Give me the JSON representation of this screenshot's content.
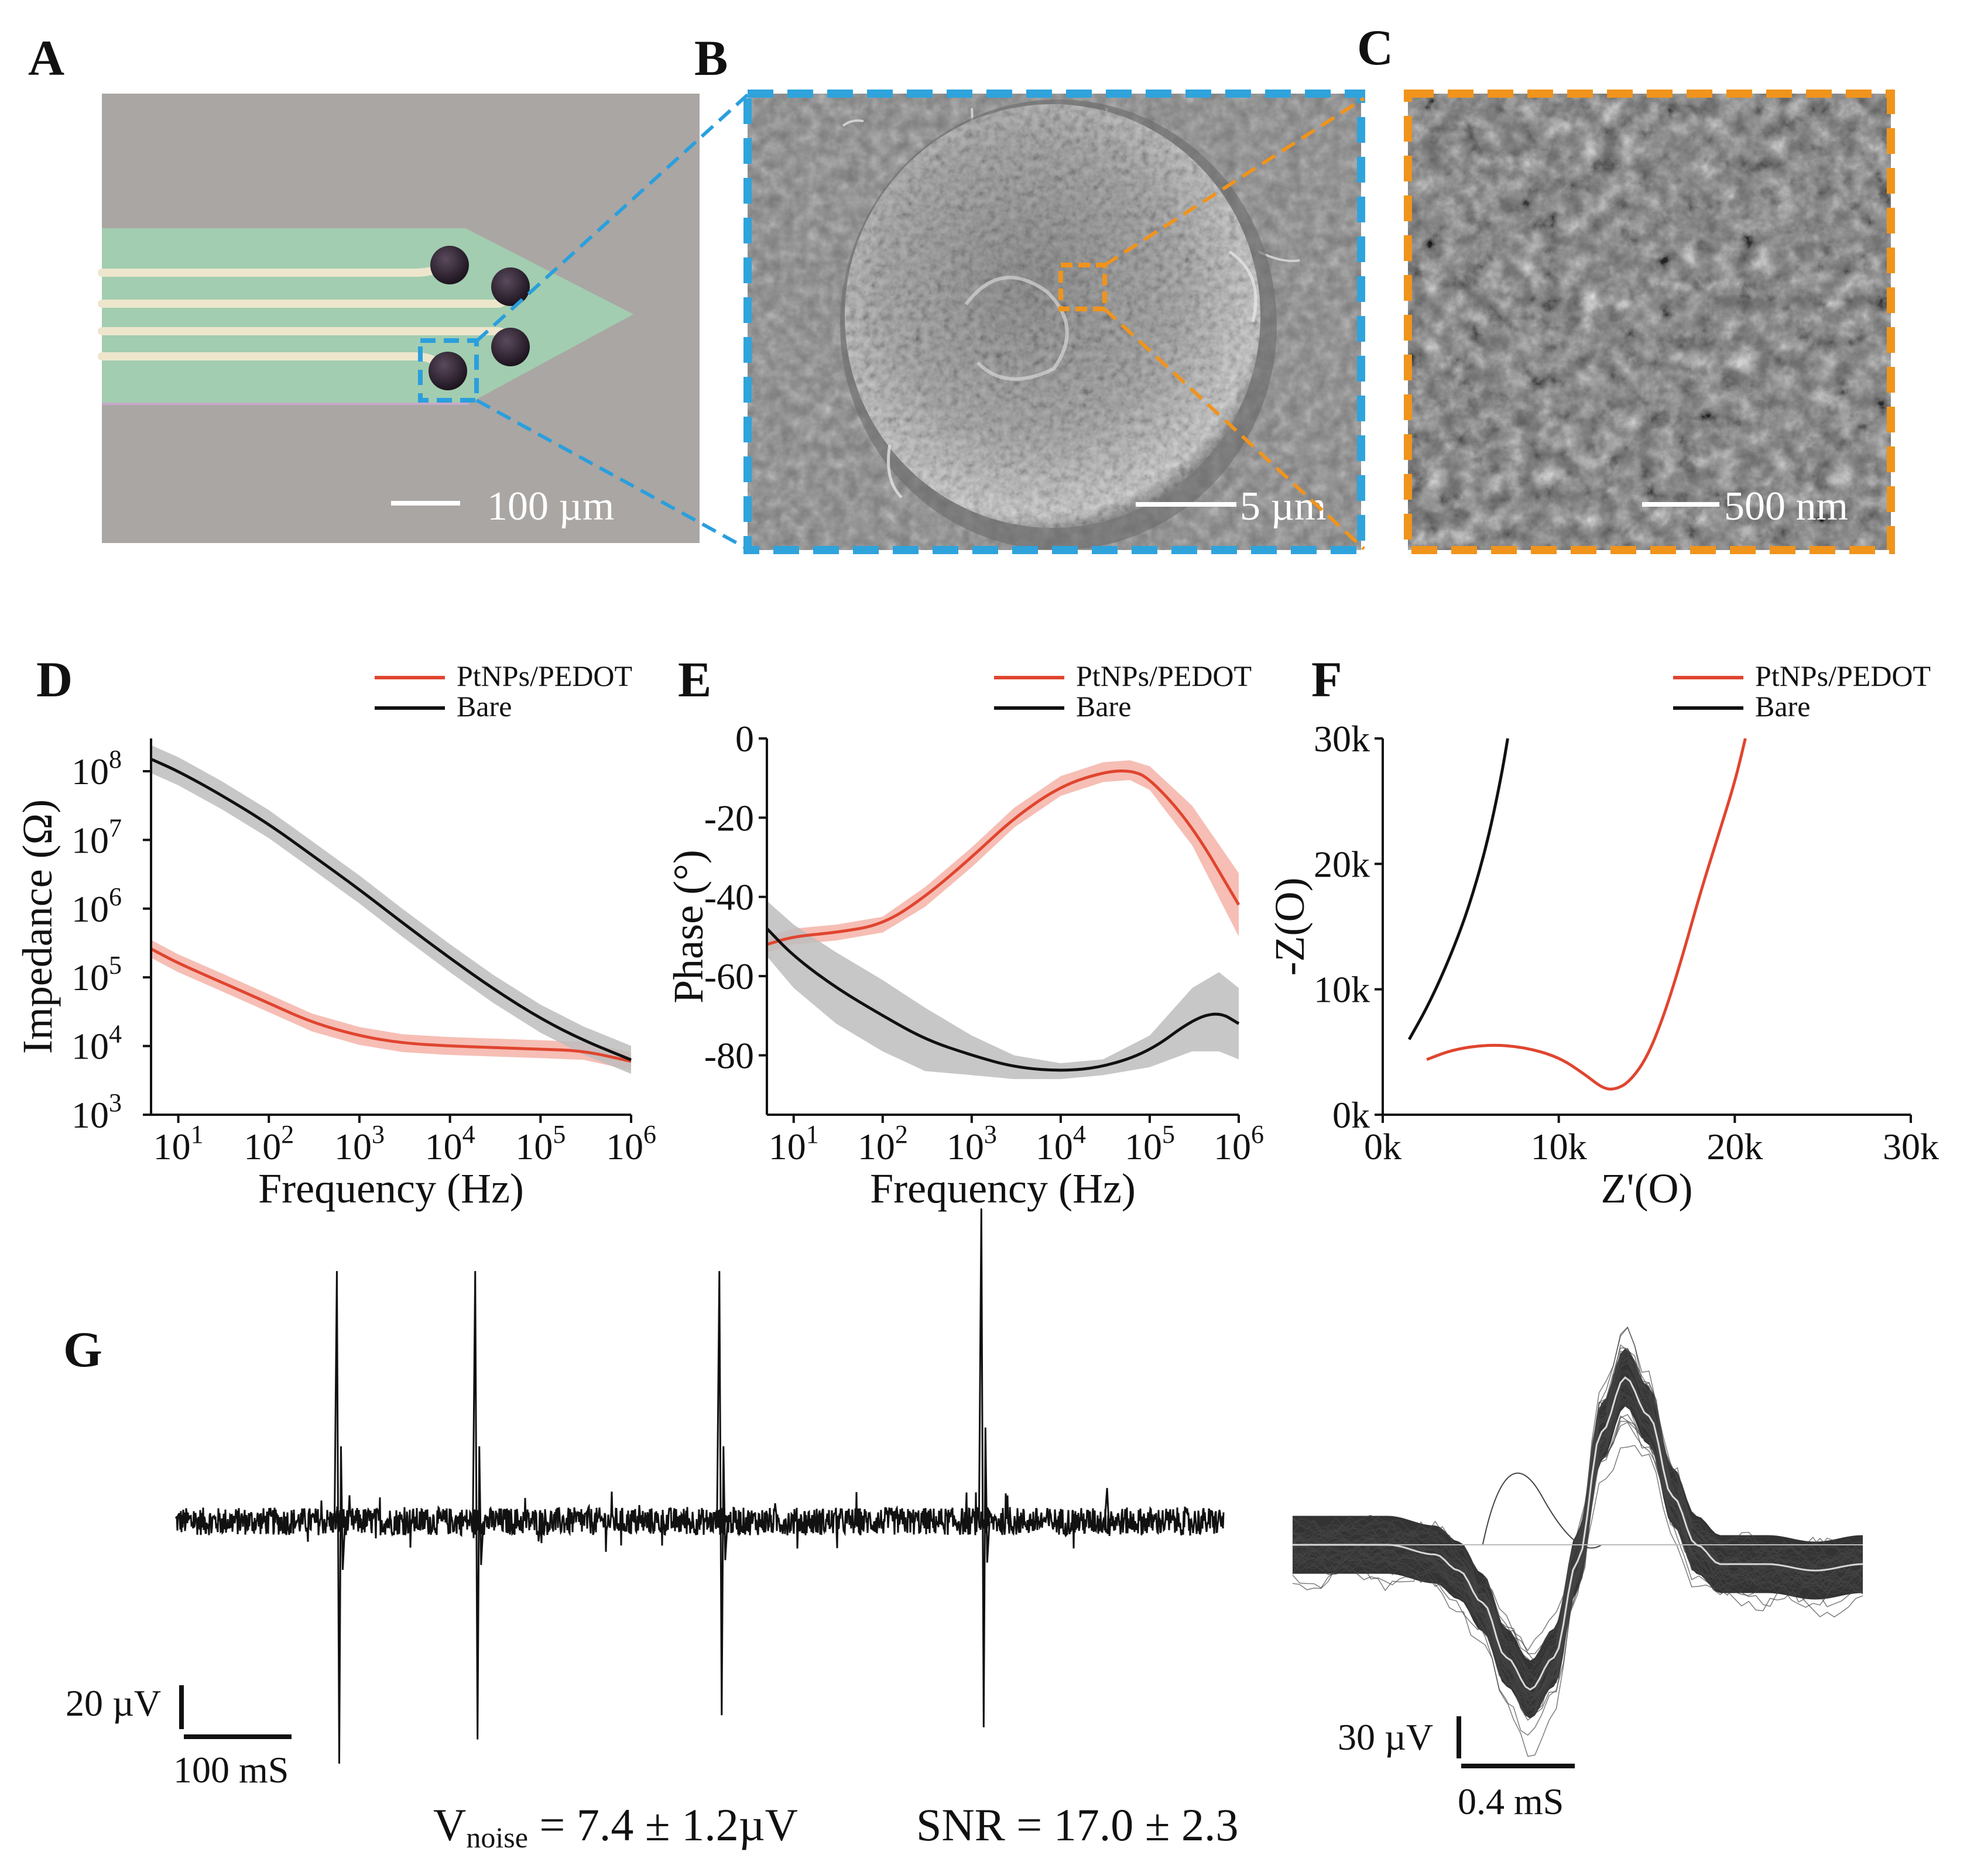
{
  "panels": {
    "A": {
      "label": "A",
      "scale_bar": "100 µm",
      "colors": {
        "background": "#aaa6a3",
        "probe": "#a2cdb0",
        "trace": "#ede6cc",
        "electrode": "#2a1e2c",
        "highlight": "#2a9fdd"
      }
    },
    "B": {
      "label": "B",
      "scale_bar": "5 µm",
      "colors": {
        "frame": "#2fa3dc",
        "zoom_box": "#f0941c"
      }
    },
    "C": {
      "label": "C",
      "scale_bar": "500 nm",
      "colors": {
        "frame": "#f0941c"
      }
    },
    "D": {
      "label": "D"
    },
    "E": {
      "label": "E"
    },
    "F": {
      "label": "F"
    },
    "G": {
      "label": "G",
      "scale_left": {
        "v": "20 µV",
        "t": "100 mS"
      },
      "scale_right": {
        "v": "30 µV",
        "t": "0.4 mS"
      },
      "noise_prefix": "V",
      "noise_sub": "noise",
      "noise_value": " = 7.4 ± 1.2µV",
      "snr": "SNR = 17.0 ± 2.3"
    }
  },
  "chart_data": [
    {
      "id": "D",
      "type": "line",
      "title": "",
      "xlabel": "Frequency (Hz)",
      "ylabel": "Impedance (Ω)",
      "xscale": "log",
      "yscale": "log",
      "xlim": [
        5,
        1000000
      ],
      "ylim": [
        1000,
        300000000
      ],
      "x_ticks": [
        {
          "v": 10,
          "b": "10",
          "e": "1"
        },
        {
          "v": 100,
          "b": "10",
          "e": "2"
        },
        {
          "v": 1000,
          "b": "10",
          "e": "3"
        },
        {
          "v": 10000,
          "b": "10",
          "e": "4"
        },
        {
          "v": 100000,
          "b": "10",
          "e": "5"
        },
        {
          "v": 1000000,
          "b": "10",
          "e": "6"
        }
      ],
      "y_ticks": [
        {
          "v": 1000,
          "b": "10",
          "e": "3"
        },
        {
          "v": 10000,
          "b": "10",
          "e": "4"
        },
        {
          "v": 100000,
          "b": "10",
          "e": "5"
        },
        {
          "v": 1000000,
          "b": "10",
          "e": "6"
        },
        {
          "v": 10000000,
          "b": "10",
          "e": "7"
        },
        {
          "v": 100000000,
          "b": "10",
          "e": "8"
        }
      ],
      "legend": [
        "PtNPs/PEDOT",
        "Bare"
      ],
      "series": [
        {
          "name": "PtNPs/PEDOT",
          "color": "#e0452f",
          "band": "#f4b3a8",
          "x": [
            5,
            10,
            30,
            100,
            300,
            1000,
            3000,
            10000,
            30000,
            100000,
            300000,
            1000000
          ],
          "y": [
            260000,
            160000,
            85000,
            42000,
            22000,
            14000,
            11000,
            10000,
            9500,
            9000,
            8500,
            6000
          ],
          "band_factor": 1.35
        },
        {
          "name": "Bare",
          "color": "#111111",
          "band": "#bdbdbd",
          "x": [
            5,
            10,
            30,
            100,
            300,
            1000,
            3000,
            10000,
            30000,
            100000,
            300000,
            1000000
          ],
          "y": [
            150000000,
            100000000,
            45000000,
            17000000,
            6000000,
            1900000,
            620000,
            190000,
            68000,
            25000,
            12000,
            6300
          ],
          "band_factor": 1.6
        }
      ]
    },
    {
      "id": "E",
      "type": "line",
      "title": "",
      "xlabel": "Frequency (Hz)",
      "ylabel": "Phase (°)",
      "xscale": "log",
      "yscale": "linear",
      "xlim": [
        5,
        1000000
      ],
      "ylim": [
        -95,
        0
      ],
      "x_ticks": [
        {
          "v": 10,
          "b": "10",
          "e": "1"
        },
        {
          "v": 100,
          "b": "10",
          "e": "2"
        },
        {
          "v": 1000,
          "b": "10",
          "e": "3"
        },
        {
          "v": 10000,
          "b": "10",
          "e": "4"
        },
        {
          "v": 100000,
          "b": "10",
          "e": "5"
        },
        {
          "v": 1000000,
          "b": "10",
          "e": "6"
        }
      ],
      "y_ticks": [
        {
          "v": 0,
          "t": "0"
        },
        {
          "v": -20,
          "t": "-20"
        },
        {
          "v": -40,
          "t": "-40"
        },
        {
          "v": -60,
          "t": "-60"
        },
        {
          "v": -80,
          "t": "-80"
        }
      ],
      "legend": [
        "PtNPs/PEDOT",
        "Bare"
      ],
      "series": [
        {
          "name": "PtNPs/PEDOT",
          "color": "#e0452f",
          "band": [
            2,
            2,
            2,
            2,
            2.5,
            2.5,
            2.5,
            2.5,
            2.5,
            2.5,
            3,
            5,
            8
          ],
          "x": [
            5,
            10,
            30,
            100,
            300,
            1000,
            3000,
            10000,
            30000,
            60000,
            100000,
            300000,
            1000000
          ],
          "y": [
            -52,
            -50,
            -49,
            -47,
            -40,
            -30,
            -20,
            -12,
            -8.5,
            -8,
            -10,
            -22,
            -42
          ]
        },
        {
          "name": "Bare",
          "color": "#111111",
          "band": [
            7,
            8,
            9,
            9,
            8,
            5,
            3,
            2,
            2,
            4,
            8,
            10,
            9
          ],
          "x": [
            5,
            10,
            30,
            100,
            300,
            1000,
            3000,
            10000,
            30000,
            100000,
            300000,
            600000,
            1000000
          ],
          "y": [
            -48,
            -55,
            -63,
            -70,
            -76,
            -80,
            -83,
            -84,
            -83,
            -79,
            -71,
            -69,
            -72
          ]
        }
      ]
    },
    {
      "id": "F",
      "type": "line",
      "title": "",
      "xlabel": "Z'(O)",
      "ylabel": "-Z(O)",
      "xlim": [
        0,
        30000
      ],
      "ylim": [
        0,
        30000
      ],
      "x_ticks": [
        {
          "v": 0,
          "t": "0k"
        },
        {
          "v": 10000,
          "t": "10k"
        },
        {
          "v": 20000,
          "t": "20k"
        },
        {
          "v": 30000,
          "t": "30k"
        }
      ],
      "y_ticks": [
        {
          "v": 0,
          "t": "0k"
        },
        {
          "v": 10000,
          "t": "10k"
        },
        {
          "v": 20000,
          "t": "20k"
        },
        {
          "v": 30000,
          "t": "30k"
        }
      ],
      "legend": [
        "PtNPs/PEDOT",
        "Bare"
      ],
      "series": [
        {
          "name": "PtNPs/PEDOT",
          "color": "#e0452f",
          "x": [
            2500,
            4000,
            6000,
            8000,
            10000,
            11500,
            12500,
            13200,
            14000,
            15000,
            16000,
            17000,
            18000,
            19000,
            20000,
            20600
          ],
          "y": [
            4400,
            5200,
            5600,
            5400,
            4600,
            3200,
            2100,
            2000,
            2600,
            4500,
            8000,
            12500,
            17500,
            22000,
            26500,
            30000
          ]
        },
        {
          "name": "Bare",
          "color": "#111111",
          "x": [
            1500,
            2500,
            3500,
            4500,
            5200,
            5800,
            6300,
            6800,
            7100
          ],
          "y": [
            6000,
            8500,
            11500,
            15000,
            18000,
            21000,
            24000,
            27500,
            30000
          ]
        }
      ]
    },
    {
      "id": "G-trace",
      "type": "line",
      "title": "",
      "description_values": {
        "spike_times_fraction": [
          0.155,
          0.287,
          0.52,
          0.77,
          0.89
        ],
        "spike_amp_up_uV": [
          60,
          60,
          60,
          75,
          8
        ],
        "spike_amp_down_uV": [
          100,
          90,
          80,
          85,
          6
        ]
      },
      "noise_rms_uV": 7.4
    },
    {
      "id": "G-waveforms",
      "type": "line",
      "title": "",
      "x_ms": [
        0,
        0.2,
        0.4,
        0.6,
        0.7,
        0.8,
        0.9,
        1.0,
        1.1,
        1.2,
        1.3,
        1.4,
        1.5,
        1.6,
        1.7,
        1.8,
        2.0,
        2.2,
        2.4
      ],
      "mean_uV": [
        0,
        0,
        0,
        -3,
        -8,
        -18,
        -35,
        -45,
        -35,
        -5,
        35,
        52,
        40,
        15,
        0,
        -6,
        -6,
        -8,
        -6
      ]
    }
  ]
}
